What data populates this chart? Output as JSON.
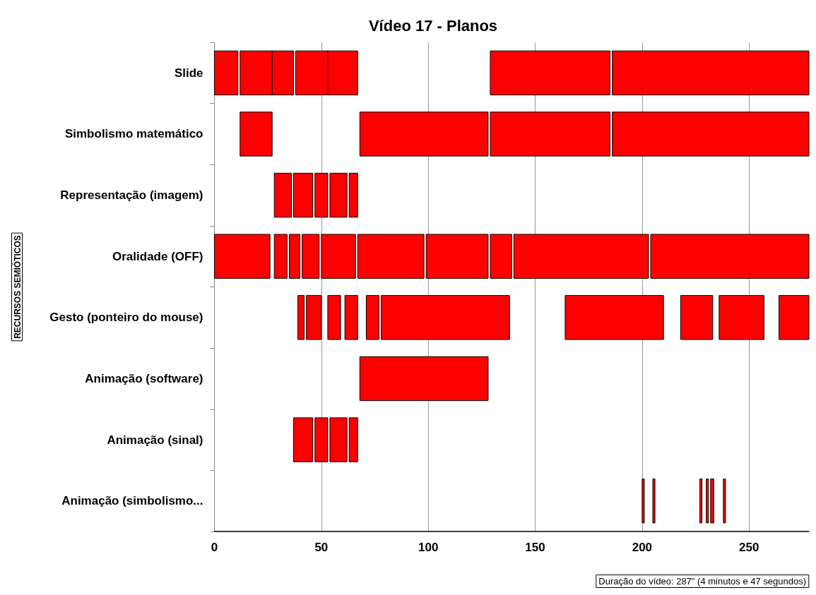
{
  "chart_data": {
    "type": "bar",
    "orientation": "horizontal",
    "title": "Vídeo 17 - Planos",
    "ylabel": "RECURSOS SEMIÓTICOS",
    "categories": [
      "Slide",
      "Simbolismo matemático",
      "Representação (imagem)",
      "Oralidade (OFF)",
      "Gesto (ponteiro do mouse)",
      "Animação (software)",
      "Animação (sinal)",
      "Animação (simbolismo..."
    ],
    "series": [
      {
        "color": "#ff0000",
        "base": [
          0,
          12,
          28,
          0,
          39,
          68,
          37,
          200
        ],
        "values": [
          11,
          15,
          8,
          26,
          3,
          60,
          9,
          1
        ]
      },
      {
        "color": "#ff0000",
        "base": [
          12,
          68,
          37,
          28,
          43,
          null,
          47,
          205
        ],
        "values": [
          15,
          60,
          9,
          6,
          7,
          null,
          6,
          1
        ]
      },
      {
        "color": "#ff0000",
        "base": [
          27,
          129,
          47,
          35,
          53,
          null,
          54,
          227
        ],
        "values": [
          10,
          56,
          6,
          5,
          6,
          null,
          8,
          1
        ]
      },
      {
        "color": "#ff0000",
        "base": [
          38,
          186,
          54,
          41,
          61,
          null,
          63,
          230
        ],
        "values": [
          15,
          92,
          8,
          8,
          6,
          null,
          4,
          1
        ]
      },
      {
        "color": "#ff0000",
        "base": [
          53,
          null,
          63,
          50,
          71,
          null,
          null,
          232
        ],
        "values": [
          14,
          null,
          4,
          16,
          6,
          null,
          null,
          1.5
        ]
      },
      {
        "color": "#ff0000",
        "base": [
          129,
          null,
          null,
          67,
          78,
          null,
          null,
          238
        ],
        "values": [
          56,
          null,
          null,
          31,
          60,
          null,
          null,
          1
        ]
      },
      {
        "color": "#ff0000",
        "base": [
          186,
          null,
          null,
          99,
          164,
          null,
          null,
          null
        ],
        "values": [
          92,
          null,
          null,
          29,
          46,
          null,
          null,
          null
        ]
      },
      {
        "color": "#ff0000",
        "base": [
          null,
          null,
          null,
          129,
          218,
          null,
          null,
          null
        ],
        "values": [
          null,
          null,
          null,
          10,
          15,
          null,
          null,
          null
        ]
      },
      {
        "color": "#ff0000",
        "base": [
          null,
          null,
          null,
          140,
          236,
          null,
          null,
          null
        ],
        "values": [
          null,
          null,
          null,
          63,
          21,
          null,
          null,
          null
        ]
      },
      {
        "color": "#ff0000",
        "base": [
          null,
          null,
          null,
          204,
          264,
          null,
          null,
          null
        ],
        "values": [
          null,
          null,
          null,
          74,
          14,
          null,
          null,
          null
        ]
      }
    ],
    "xlim": [
      0,
      278
    ],
    "xticks": [
      0,
      50,
      100,
      150,
      200,
      250
    ],
    "grid": "x",
    "annotations": [
      "Duração do vídeo: 287\" (4 minutos e 47 segundos)"
    ]
  }
}
